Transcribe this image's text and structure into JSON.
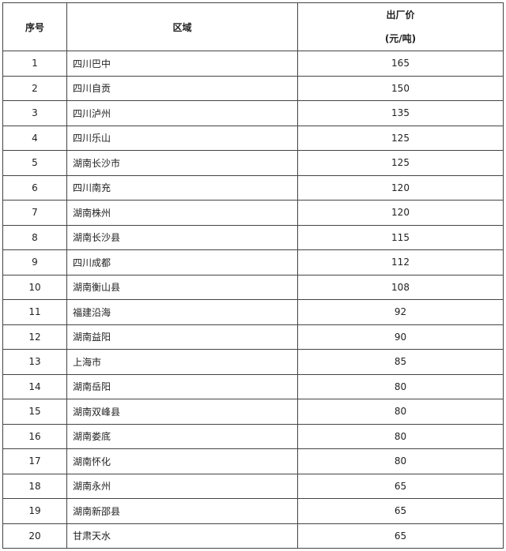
{
  "table": {
    "headers": {
      "index": "序号",
      "region": "区域",
      "price_line1": "出厂价",
      "price_line2": "(元/吨)"
    },
    "rows": [
      {
        "index": "1",
        "region": "四川巴中",
        "price": "165"
      },
      {
        "index": "2",
        "region": "四川自贡",
        "price": "150"
      },
      {
        "index": "3",
        "region": "四川泸州",
        "price": "135"
      },
      {
        "index": "4",
        "region": "四川乐山",
        "price": "125"
      },
      {
        "index": "5",
        "region": "湖南长沙市",
        "price": "125"
      },
      {
        "index": "6",
        "region": "四川南充",
        "price": "120"
      },
      {
        "index": "7",
        "region": "湖南株州",
        "price": "120"
      },
      {
        "index": "8",
        "region": "湖南长沙县",
        "price": "115"
      },
      {
        "index": "9",
        "region": "四川成都",
        "price": "112"
      },
      {
        "index": "10",
        "region": "湖南衡山县",
        "price": "108"
      },
      {
        "index": "11",
        "region": "福建沿海",
        "price": "92"
      },
      {
        "index": "12",
        "region": "湖南益阳",
        "price": "90"
      },
      {
        "index": "13",
        "region": "上海市",
        "price": "85"
      },
      {
        "index": "14",
        "region": "湖南岳阳",
        "price": "80"
      },
      {
        "index": "15",
        "region": "湖南双峰县",
        "price": "80"
      },
      {
        "index": "16",
        "region": "湖南娄底",
        "price": "80"
      },
      {
        "index": "17",
        "region": "湖南怀化",
        "price": "80"
      },
      {
        "index": "18",
        "region": "湖南永州",
        "price": "65"
      },
      {
        "index": "19",
        "region": "湖南新邵县",
        "price": "65"
      },
      {
        "index": "20",
        "region": "甘肃天水",
        "price": "65"
      }
    ]
  }
}
